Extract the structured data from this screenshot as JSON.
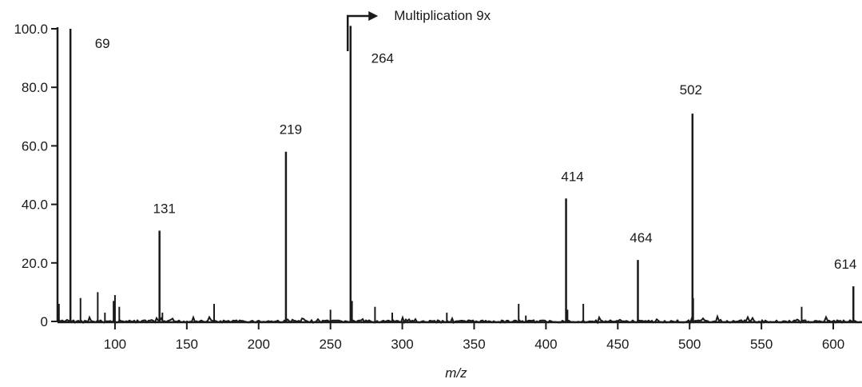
{
  "chart_data": {
    "type": "bar",
    "xlabel": "m/z",
    "ylabel": "",
    "xlim": [
      60,
      620
    ],
    "ylim": [
      0,
      100
    ],
    "x_ticks": [
      100,
      150,
      200,
      250,
      300,
      350,
      400,
      450,
      500,
      550,
      600
    ],
    "y_ticks": [
      "0",
      "20.0",
      "40.0",
      "60.0",
      "80.0",
      "100.0"
    ],
    "y_tick_values": [
      0,
      20,
      40,
      60,
      80,
      100
    ],
    "annotation": {
      "text": "Multiplication 9x",
      "at_x": 262
    },
    "labeled_peaks": [
      {
        "x": 69,
        "y": 100,
        "label": "69"
      },
      {
        "x": 131,
        "y": 31,
        "label": "131"
      },
      {
        "x": 219,
        "y": 58,
        "label": "219"
      },
      {
        "x": 264,
        "y": 101,
        "label": "264"
      },
      {
        "x": 414,
        "y": 42,
        "label": "414"
      },
      {
        "x": 464,
        "y": 21,
        "label": "464"
      },
      {
        "x": 502,
        "y": 71,
        "label": "502"
      },
      {
        "x": 614,
        "y": 12,
        "label": "614"
      }
    ],
    "minor_peaks": [
      {
        "x": 61,
        "y": 6
      },
      {
        "x": 76,
        "y": 8
      },
      {
        "x": 88,
        "y": 10
      },
      {
        "x": 93,
        "y": 3
      },
      {
        "x": 99,
        "y": 7
      },
      {
        "x": 100,
        "y": 9
      },
      {
        "x": 103,
        "y": 5
      },
      {
        "x": 133,
        "y": 3
      },
      {
        "x": 169,
        "y": 6
      },
      {
        "x": 250,
        "y": 4
      },
      {
        "x": 265,
        "y": 7
      },
      {
        "x": 281,
        "y": 5
      },
      {
        "x": 293,
        "y": 3
      },
      {
        "x": 331,
        "y": 3
      },
      {
        "x": 381,
        "y": 6
      },
      {
        "x": 386,
        "y": 2
      },
      {
        "x": 415,
        "y": 4
      },
      {
        "x": 426,
        "y": 6
      },
      {
        "x": 502.5,
        "y": 8
      },
      {
        "x": 578,
        "y": 5
      }
    ]
  }
}
